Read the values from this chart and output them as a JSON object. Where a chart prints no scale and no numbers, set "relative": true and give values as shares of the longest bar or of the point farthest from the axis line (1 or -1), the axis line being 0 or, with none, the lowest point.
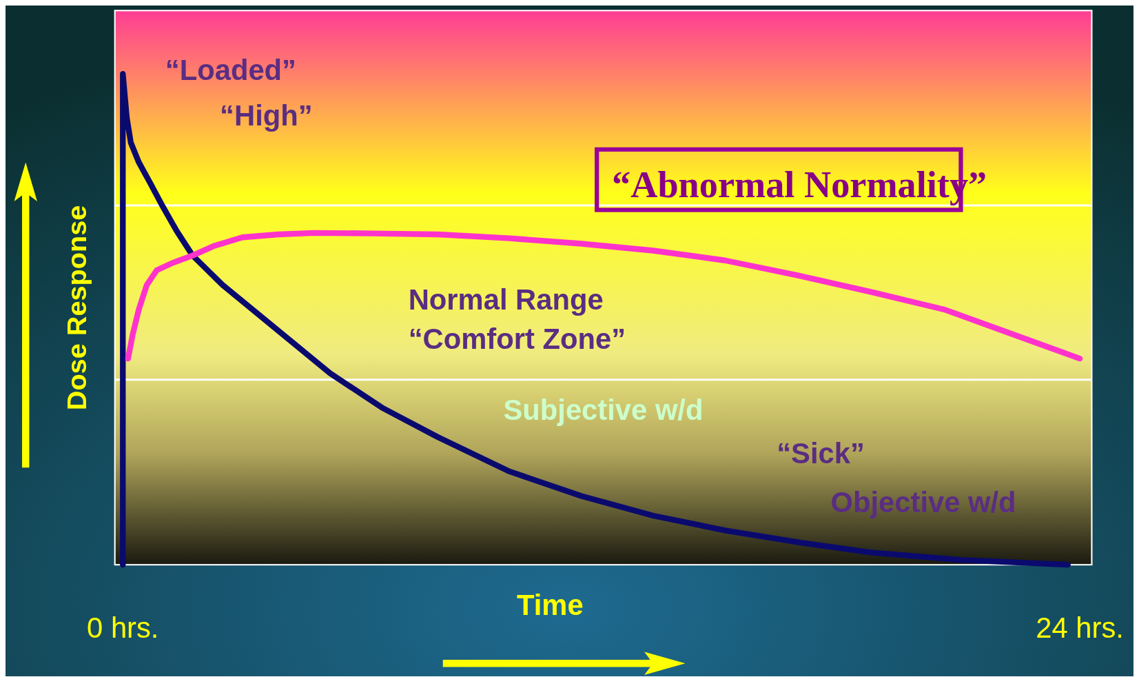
{
  "chart_data": {
    "type": "line",
    "relative": true,
    "xlabel": "Time",
    "ylabel": "Dose Response",
    "xlim": [
      -0.2,
      24.3
    ],
    "xticks": [
      {
        "value": 0,
        "label": "0 hrs."
      },
      {
        "value": 24,
        "label": "24 hrs."
      }
    ],
    "series": [
      {
        "color": "#0a0a6e",
        "x": [
          0,
          0,
          0.1,
          0.2,
          0.4,
          0.67,
          1.0,
          1.35,
          1.75,
          2.5,
          3.4,
          4.3,
          5.2,
          6.5,
          7.9,
          9.7,
          11.5,
          13.3,
          15.1,
          17,
          18.75,
          21,
          23.7
        ],
        "values": [
          0,
          1,
          0.91,
          0.86,
          0.82,
          0.78,
          0.73,
          0.68,
          0.63,
          0.57,
          0.51,
          0.45,
          0.39,
          0.32,
          0.26,
          0.19,
          0.14,
          0.1,
          0.07,
          0.045,
          0.025,
          0.01,
          0
        ]
      },
      {
        "color": "#ff33cc",
        "x": [
          0.13,
          0.25,
          0.4,
          0.6,
          0.85,
          1.25,
          1.75,
          2.3,
          3.0,
          3.9,
          4.8,
          6.3,
          7.9,
          9.7,
          11.5,
          13.3,
          15.1,
          16.9,
          18.7,
          20.6,
          22.3,
          24
        ],
        "values": [
          0.42,
          0.47,
          0.52,
          0.57,
          0.6,
          0.615,
          0.63,
          0.65,
          0.667,
          0.673,
          0.676,
          0.675,
          0.673,
          0.665,
          0.654,
          0.64,
          0.62,
          0.59,
          0.557,
          0.52,
          0.47,
          0.42
        ]
      }
    ],
    "ref_lines": [
      {
        "axis": "y",
        "value": 0.732,
        "color": "#ffffff"
      },
      {
        "axis": "y",
        "value": 0.377,
        "color": "#ffffff"
      }
    ],
    "annotations": [
      "“Loaded”",
      "“High”",
      "“Abnormal Normality”",
      "Normal Range",
      "“Comfort Zone”",
      "Subjective w/d",
      "“Sick”",
      "Objective w/d"
    ],
    "line_style": "solid",
    "marker": "none",
    "grid": false,
    "legend": false
  }
}
